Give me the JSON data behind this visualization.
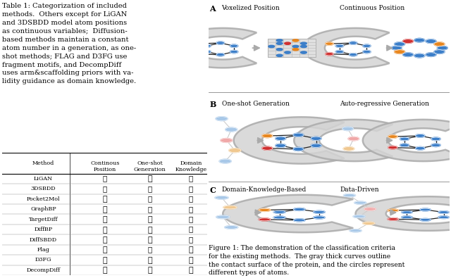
{
  "table_caption_lines": [
    "Table 1: Categorization of included",
    "methods.  Others except for LiGAN",
    "and 3DSBDD model atom positions",
    "as continuous variables;  Diffusion-",
    "based methods maintain a constant",
    "atom number in a generation, as one-",
    "shot methods; FLAG and D3FG use",
    "fragment motifs, and DecompDiff",
    "uses arm&scaffolding priors with va-",
    "lidity guidance as domain knowledge."
  ],
  "table_headers": [
    "Method",
    "Continous\nPosition",
    "One-shot\nGeneration",
    "Domain\nKnowledge"
  ],
  "table_rows": [
    [
      "LiGAN",
      false,
      true,
      false
    ],
    [
      "3DSBDD",
      false,
      false,
      false
    ],
    [
      "Pocket2Mol",
      true,
      false,
      false
    ],
    [
      "GraphBP",
      true,
      false,
      false
    ],
    [
      "TargetDiff",
      true,
      true,
      false
    ],
    [
      "DiffBP",
      true,
      true,
      false
    ],
    [
      "DiffSBDD",
      true,
      true,
      false
    ],
    [
      "Flag",
      true,
      false,
      true
    ],
    [
      "D3FG",
      true,
      true,
      true
    ],
    [
      "DecompDiff",
      true,
      true,
      true
    ]
  ],
  "section_A_left_title": "Voxelized Position",
  "section_A_right_title": "Continuous Position",
  "section_B_left_title": "One-shot Generation",
  "section_B_right_title": "Auto-regressive Generation",
  "section_C_left_title": "Domain-Knowledge-Based",
  "section_C_right_title": "Data-Driven",
  "figure_caption": "Figure 1: The demonstration of the classification criteria\nfor the existing methods.  The gray thick curves outline\nthe contact surface of the protein, and the circles represent\ndifferent types of atoms.",
  "blue": "#3B7EC9",
  "orange": "#E8861E",
  "red": "#D03030",
  "lightblue": "#A8C8E8",
  "lightorange": "#F0C890",
  "lightred": "#F0A8A8",
  "protein_fill": "#d4d4d4",
  "protein_edge": "#aaaaaa",
  "grid_fill": "#e0e0e0",
  "grid_line": "#b8b8b8",
  "arrow_color": "#aaaaaa",
  "sep_line_color": "#888888"
}
